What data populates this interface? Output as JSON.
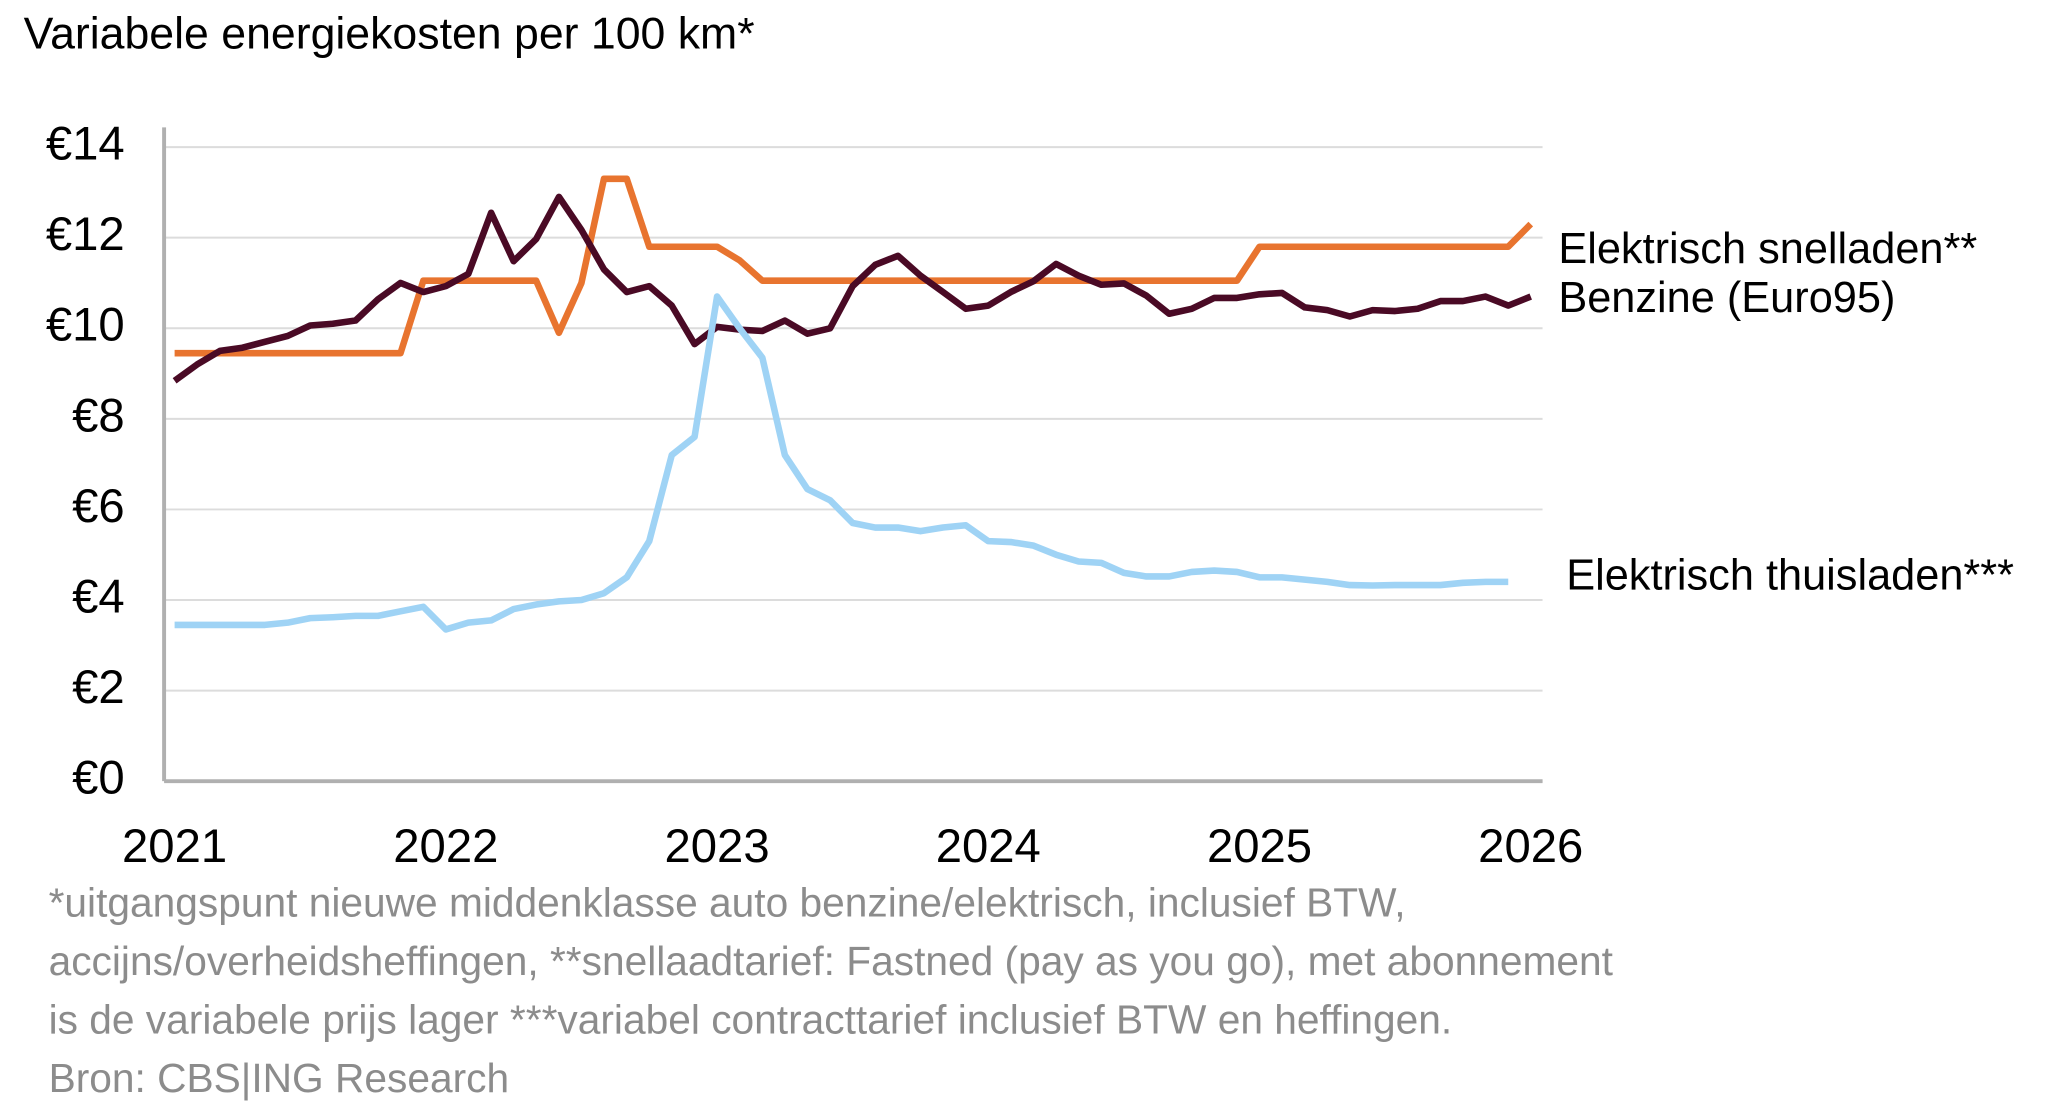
{
  "chart_data": {
    "type": "line",
    "title": "Variabele energiekosten per 100 km*",
    "x": [
      2021,
      2021.083,
      2021.167,
      2021.25,
      2021.333,
      2021.417,
      2021.5,
      2021.583,
      2021.667,
      2021.75,
      2021.833,
      2021.917,
      2022,
      2022.083,
      2022.167,
      2022.25,
      2022.333,
      2022.417,
      2022.5,
      2022.583,
      2022.667,
      2022.75,
      2022.833,
      2022.917,
      2023,
      2023.083,
      2023.167,
      2023.25,
      2023.333,
      2023.417,
      2023.5,
      2023.583,
      2023.667,
      2023.75,
      2023.833,
      2023.917,
      2024,
      2024.083,
      2024.167,
      2024.25,
      2024.333,
      2024.417,
      2024.5,
      2024.583,
      2024.667,
      2024.75,
      2024.833,
      2024.917,
      2025,
      2025.083,
      2025.167,
      2025.25,
      2025.333,
      2025.417,
      2025.5,
      2025.583,
      2025.667,
      2025.75,
      2025.833,
      2025.917,
      2026
    ],
    "series": [
      {
        "name": "Elektrisch snelladen**",
        "color": "#e8742f",
        "values": [
          9.45,
          9.45,
          9.45,
          9.45,
          9.45,
          9.45,
          9.45,
          9.45,
          9.45,
          9.45,
          9.45,
          11.05,
          11.05,
          11.05,
          11.05,
          11.05,
          11.05,
          9.9,
          11.0,
          13.3,
          13.3,
          11.8,
          11.8,
          11.8,
          11.8,
          11.5,
          11.05,
          11.05,
          11.05,
          11.05,
          11.05,
          11.05,
          11.05,
          11.05,
          11.05,
          11.05,
          11.05,
          11.05,
          11.05,
          11.05,
          11.05,
          11.05,
          11.05,
          11.05,
          11.05,
          11.05,
          11.05,
          11.05,
          11.8,
          11.8,
          11.8,
          11.8,
          11.8,
          11.8,
          11.8,
          11.8,
          11.8,
          11.8,
          11.8,
          11.8,
          12.3
        ]
      },
      {
        "name": "Benzine (Euro95)",
        "color": "#4a0a25",
        "values": [
          8.84,
          9.2,
          9.5,
          9.57,
          9.7,
          9.83,
          10.06,
          10.1,
          10.17,
          10.64,
          11.0,
          10.8,
          10.93,
          11.2,
          12.55,
          11.48,
          11.97,
          12.9,
          12.17,
          11.3,
          10.8,
          10.93,
          10.5,
          9.65,
          10.03,
          9.97,
          9.94,
          10.17,
          9.88,
          10.0,
          10.93,
          11.4,
          11.6,
          11.16,
          10.8,
          10.43,
          10.5,
          10.8,
          11.04,
          11.42,
          11.16,
          10.96,
          10.99,
          10.72,
          10.32,
          10.43,
          10.67,
          10.67,
          10.75,
          10.78,
          10.46,
          10.4,
          10.26,
          10.4,
          10.38,
          10.43,
          10.6,
          10.6,
          10.7,
          10.5,
          10.7
        ]
      },
      {
        "name": "Elektrisch thuisladen***",
        "color": "#9fd3f5",
        "values": [
          3.45,
          3.45,
          3.45,
          3.45,
          3.45,
          3.5,
          3.6,
          3.62,
          3.65,
          3.65,
          3.75,
          3.85,
          3.35,
          3.5,
          3.55,
          3.8,
          3.9,
          3.97,
          4.0,
          4.15,
          4.5,
          5.3,
          7.2,
          7.6,
          10.7,
          10.0,
          9.35,
          7.2,
          6.45,
          6.2,
          5.7,
          5.6,
          5.6,
          5.52,
          5.6,
          5.65,
          5.3,
          5.28,
          5.2,
          5.0,
          4.85,
          4.82,
          4.6,
          4.52,
          4.52,
          4.62,
          4.65,
          4.62,
          4.5,
          4.5,
          4.45,
          4.4,
          4.33,
          4.32,
          4.33,
          4.33,
          4.33,
          4.38,
          4.4,
          4.4,
          null
        ]
      }
    ],
    "xlim": [
      2021,
      2026
    ],
    "xticks": [
      2021,
      2022,
      2023,
      2024,
      2025,
      2026
    ],
    "ylim": [
      0,
      14
    ],
    "yticks": [
      {
        "value": 0,
        "label": "€0"
      },
      {
        "value": 2,
        "label": "€2"
      },
      {
        "value": 4,
        "label": "€4"
      },
      {
        "value": 6,
        "label": "€6"
      },
      {
        "value": 8,
        "label": "€8"
      },
      {
        "value": 10,
        "label": "€10"
      },
      {
        "value": 12,
        "label": "€12"
      },
      {
        "value": 14,
        "label": "€14"
      }
    ],
    "grid": true,
    "notes": [
      "*uitgangspunt nieuwe middenklasse auto benzine/elektrisch, inclusief BTW,",
      "accijns/overheidsheffingen, **snellaadtarief: Fastned (pay as you go), met abonnement",
      "is de variabele prijs lager ***variabel contracttarief inclusief BTW en heffingen.",
      "Bron: CBS|ING Research"
    ]
  }
}
